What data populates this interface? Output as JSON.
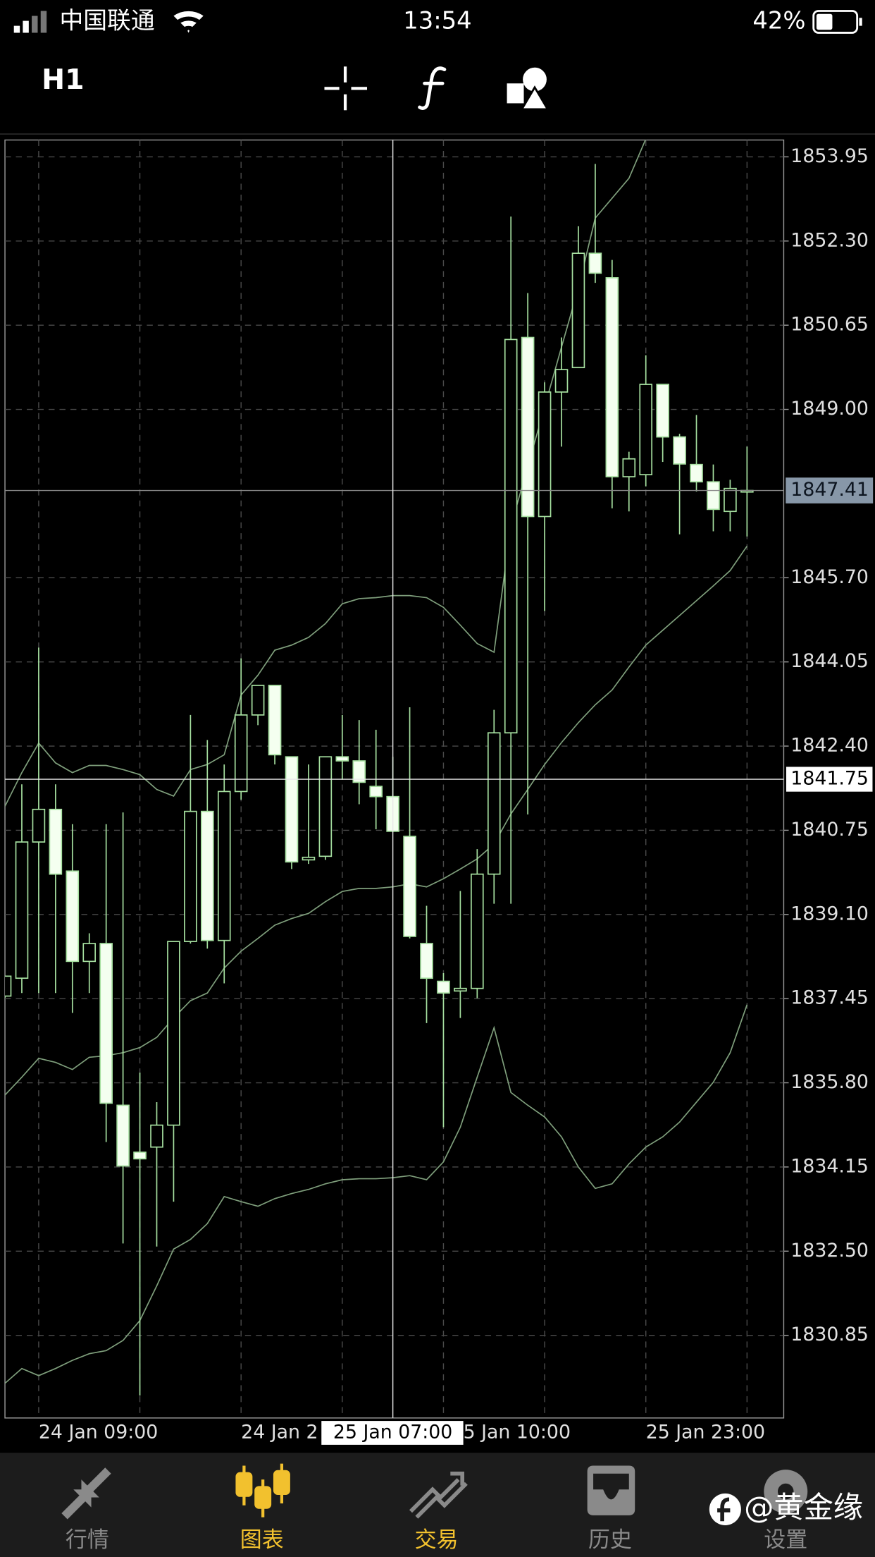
{
  "status_bar": {
    "carrier": "中国联通",
    "time": "13:54",
    "battery": "42%"
  },
  "toolbar": {
    "timeframe": "H1"
  },
  "chart_data": {
    "type": "candlestick",
    "x": [
      null,
      null,
      "24 Jan 09:00",
      null,
      null,
      null,
      null,
      null,
      null,
      null,
      null,
      null,
      null,
      null,
      "24 Jan 2",
      null,
      null,
      null,
      null,
      null,
      null,
      null,
      null,
      null,
      null,
      null,
      "5 Jan 10:00",
      null,
      null,
      null,
      null,
      null,
      null,
      null,
      null,
      null,
      null,
      null,
      "25 Jan 23:00",
      null,
      null,
      null,
      null,
      null,
      null
    ],
    "open": [
      1837.5,
      1837.85,
      1840.52,
      1841.16,
      1839.95,
      1838.18,
      1838.53,
      1835.36,
      1834.44,
      1834.54,
      1834.97,
      1838.57,
      1841.12,
      1838.59,
      1841.51,
      1843.01,
      1843.59,
      1842.19,
      1840.17,
      1840.24,
      1842.19,
      1842.11,
      1841.61,
      1841.41,
      1840.63,
      1838.53,
      1837.79,
      1837.6,
      1837.65,
      1839.89,
      1842.66,
      1850.41,
      1846.9,
      1849.34,
      1849.82,
      1852.06,
      1851.58,
      1847.68,
      1847.72,
      1849.49,
      1848.46,
      1847.92,
      1847.58,
      1847.0,
      1847.38
    ],
    "high": [
      1837.89,
      1841.65,
      1844.33,
      1841.65,
      1840.87,
      1838.73,
      1840.87,
      1841.1,
      1836.0,
      1835.42,
      1838.57,
      1843.01,
      1842.52,
      1842.04,
      1844.12,
      1843.59,
      1843.59,
      1842.19,
      1842.04,
      1842.19,
      1843.01,
      1842.91,
      1842.72,
      1842.19,
      1843.16,
      1839.27,
      1837.95,
      1839.56,
      1840.38,
      1843.11,
      1852.78,
      1851.28,
      1849.53,
      1850.41,
      1852.59,
      1853.81,
      1851.93,
      1848.17,
      1850.06,
      1849.49,
      1848.52,
      1848.89,
      1847.92,
      1847.62,
      1848.27
    ],
    "low": [
      1837.46,
      1837.56,
      1837.56,
      1837.56,
      1837.17,
      1837.56,
      1834.64,
      1832.65,
      1829.67,
      1832.59,
      1833.47,
      1838.53,
      1838.43,
      1837.75,
      1841.35,
      1842.81,
      1842.04,
      1839.99,
      1840.09,
      1840.17,
      1841.74,
      1841.26,
      1840.77,
      1840.71,
      1838.63,
      1836.97,
      1834.93,
      1837.07,
      1837.46,
      1839.31,
      1839.31,
      1841.06,
      1845.05,
      1848.27,
      1849.82,
      1851.48,
      1847.06,
      1847.0,
      1847.49,
      1847.97,
      1846.55,
      1847.39,
      1846.61,
      1846.61,
      1846.51
    ],
    "close": [
      1837.89,
      1840.52,
      1841.16,
      1839.89,
      1838.18,
      1838.53,
      1835.4,
      1834.17,
      1834.31,
      1834.97,
      1838.57,
      1841.12,
      1838.59,
      1841.51,
      1843.01,
      1843.59,
      1842.23,
      1840.13,
      1840.22,
      1842.19,
      1842.11,
      1841.69,
      1841.41,
      1840.73,
      1838.67,
      1837.85,
      1837.56,
      1837.65,
      1839.89,
      1842.66,
      1850.37,
      1846.9,
      1849.34,
      1849.78,
      1852.06,
      1851.67,
      1847.68,
      1848.03,
      1849.49,
      1848.46,
      1847.93,
      1847.58,
      1847.04,
      1847.45,
      1847.41
    ],
    "bands": {
      "upper": [
        1841.22,
        1841.88,
        1842.46,
        1842.07,
        1841.88,
        1842.02,
        1842.02,
        1841.94,
        1841.84,
        1841.55,
        1841.42,
        1841.94,
        1842.04,
        1842.23,
        1843.4,
        1843.79,
        1844.28,
        1844.38,
        1844.53,
        1844.8,
        1845.19,
        1845.29,
        1845.31,
        1845.35,
        1845.35,
        1845.31,
        1845.12,
        1844.77,
        1844.41,
        1844.24,
        1846.71,
        1847.88,
        1849.05,
        1850.22,
        1851.38,
        1852.75,
        1853.14,
        1853.53,
        1854.3,
        null,
        null,
        null,
        null,
        null,
        null
      ],
      "middle": [
        1835.56,
        1835.91,
        1836.28,
        1836.2,
        1836.06,
        1836.3,
        1836.33,
        1836.39,
        1836.49,
        1836.69,
        1837.07,
        1837.41,
        1837.56,
        1838.05,
        1838.38,
        1838.63,
        1838.89,
        1839.02,
        1839.12,
        1839.35,
        1839.55,
        1839.61,
        1839.61,
        1839.64,
        1839.7,
        1839.64,
        1839.8,
        1839.99,
        1840.19,
        1840.48,
        1841.07,
        1841.55,
        1842.04,
        1842.47,
        1842.86,
        1843.21,
        1843.5,
        1843.95,
        1844.38,
        1844.67,
        1844.96,
        1845.25,
        1845.54,
        1845.84,
        1846.32
      ],
      "lower": [
        1829.91,
        1830.2,
        1830.06,
        1830.2,
        1830.36,
        1830.49,
        1830.55,
        1830.75,
        1831.14,
        1831.82,
        1832.54,
        1832.73,
        1833.04,
        1833.57,
        1833.47,
        1833.38,
        1833.53,
        1833.63,
        1833.71,
        1833.82,
        1833.9,
        1833.92,
        1833.92,
        1833.94,
        1833.98,
        1833.9,
        1834.25,
        1834.93,
        1835.91,
        1836.88,
        1835.61,
        1835.36,
        1835.13,
        1834.74,
        1834.15,
        1833.73,
        1833.82,
        1834.21,
        1834.54,
        1834.74,
        1835.03,
        1835.42,
        1835.81,
        1836.39,
        1837.33
      ]
    },
    "color": "#a6e0a0",
    "band_color": "#7f9f7c",
    "ylim": [
      1829.23,
      1854.28
    ],
    "yticks": [
      1830.85,
      {
        "value": 1832.5,
        "label": "1832.50"
      },
      1834.15,
      {
        "value": 1835.8,
        "label": "1835.80"
      },
      1837.45,
      {
        "value": 1839.1,
        "label": "1839.10"
      },
      1840.75,
      {
        "value": 1842.4,
        "label": "1842.40"
      },
      1844.05,
      {
        "value": 1845.7,
        "label": "1845.70"
      },
      {
        "value": 1849,
        "label": "1849.00"
      },
      1850.65,
      {
        "value": 1852.3,
        "label": "1852.30"
      },
      1853.95
    ],
    "grid": true,
    "last_price": 1847.41,
    "crosshair": {
      "x": "25 Jan 07:00",
      "y": 1841.75
    }
  },
  "tab_bar": {
    "tabs": [
      "行情",
      "图表",
      "交易",
      "历史",
      "设置"
    ]
  },
  "watermark": "@黄金缘"
}
